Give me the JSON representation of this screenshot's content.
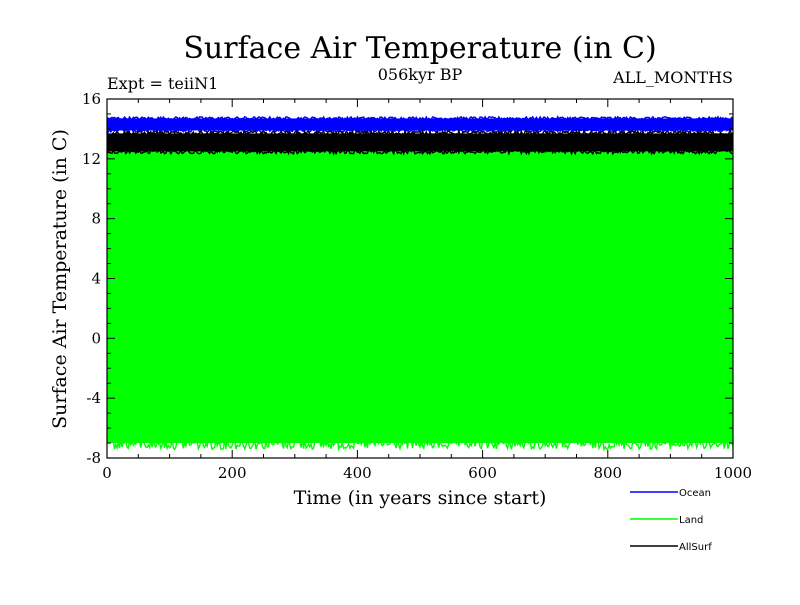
{
  "chart_data": {
    "type": "line",
    "title": "Surface Air Temperature (in C)",
    "subtitle": "056kyr BP",
    "expt_label": "Expt = teiiN1",
    "months_label": "ALL_MONTHS",
    "xlabel": "Time (in years since start)",
    "ylabel": "Surface Air Temperature (in C)",
    "xlim": [
      0,
      1000
    ],
    "ylim": [
      -8,
      16
    ],
    "xticks": [
      0,
      200,
      400,
      600,
      800,
      1000
    ],
    "yticks": [
      -8,
      -4,
      0,
      4,
      8,
      12,
      16
    ],
    "xtick_labels": [
      "0",
      "200",
      "400",
      "600",
      "800",
      "1000"
    ],
    "ytick_labels": [
      "-8",
      "-4",
      "0",
      "4",
      "8",
      "12",
      "16"
    ],
    "grid": false,
    "legend_placement": "bottom-right",
    "series": [
      {
        "name": "Ocean",
        "color": "#0000ff",
        "low": 13.9,
        "high": 14.7
      },
      {
        "name": "Land",
        "color": "#00ff00",
        "low": -7.0,
        "high": 12.5
      },
      {
        "name": "AllSurf",
        "color": "#000000",
        "low": 12.5,
        "high": 13.7
      }
    ]
  }
}
